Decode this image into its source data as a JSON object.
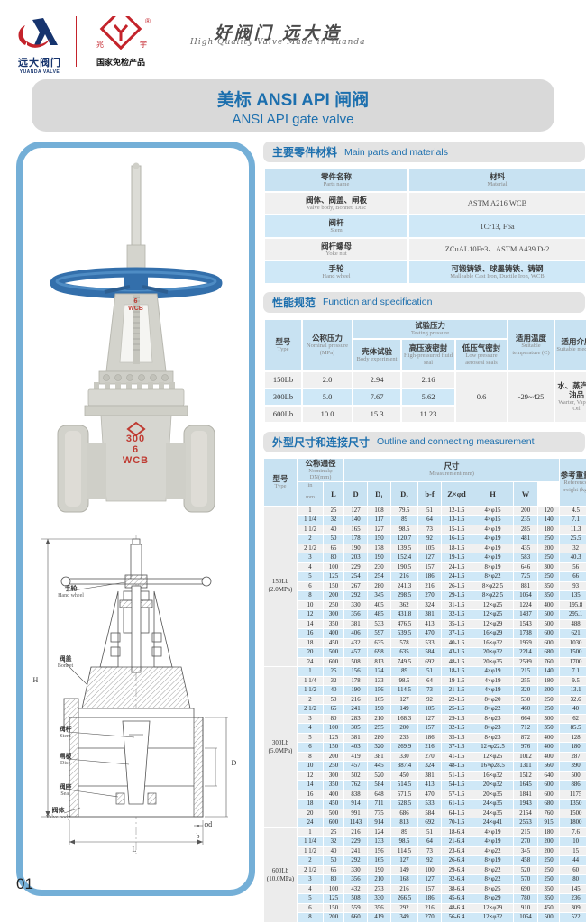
{
  "header": {
    "logo1": {
      "cn": "远大阀门",
      "en": "YUANDA VALVE"
    },
    "logo2": {
      "caption": "国家免检产品",
      "reg": "®"
    },
    "slogan": {
      "cn": "好阀门 远大造",
      "en": "High Quality Valve Made in Yuanda"
    }
  },
  "banner": {
    "title_cn": "美标 ANSI API 闸阀",
    "title_en": "ANSI API gate valve"
  },
  "photo": {
    "yoke_marks": [
      "6",
      "WCB"
    ],
    "body_marks": [
      "300",
      "6",
      "WCB"
    ]
  },
  "drawing": {
    "labels": [
      {
        "cn": "手轮",
        "en": "Hand wheel"
      },
      {
        "cn": "阀盖",
        "en": "Bonnet"
      },
      {
        "cn": "阀杆",
        "en": "Stem"
      },
      {
        "cn": "闸板",
        "en": "Disc"
      },
      {
        "cn": "阀座",
        "en": "Seat"
      },
      {
        "cn": "阀体",
        "en": "Valve body"
      }
    ],
    "dims": [
      "H",
      "L",
      "D",
      "φd",
      "b"
    ]
  },
  "parts": {
    "title_cn": "主要零件材料",
    "title_en": "Main parts and materials",
    "col1_cn": "零件名称",
    "col1_en": "Parts name",
    "col2_cn": "材料",
    "col2_en": "Material",
    "rows": [
      {
        "name_cn": "阀体、阀盖、闸板",
        "name_en": "Valve body, Bonnet, Disc",
        "mat_cn": "",
        "mat_en": "ASTM A216 WCB"
      },
      {
        "name_cn": "阀杆",
        "name_en": "Stem",
        "mat_cn": "",
        "mat_en": "1Cr13, F6a"
      },
      {
        "name_cn": "阀杆螺母",
        "name_en": "Yoke nut",
        "mat_cn": "",
        "mat_en": "ZCuAL10Fe3、ASTM A439 D-2"
      },
      {
        "name_cn": "手轮",
        "name_en": "Hand wheel",
        "mat_cn": "可锻铸铁、球墨铸铁、铸钢",
        "mat_en": "Malleable Cast Iron, Ductile Iron, WCB"
      }
    ]
  },
  "spec": {
    "title_cn": "性能规范",
    "title_en": "Function and specification",
    "h_type_cn": "型号",
    "h_type_en": "Type",
    "h_nominal_cn": "公称压力",
    "h_nominal_en": "Nominal pressure (MPa)",
    "h_test_cn": "试验压力",
    "h_test_en": "Testing pressure",
    "h_body_cn": "壳体试验",
    "h_body_en": "Body experiment",
    "h_high_cn": "高压液密封",
    "h_high_en": "High-pressured fluid seal",
    "h_low_cn": "低压气密封",
    "h_low_en": "Low pressure aeroseal seals",
    "h_temp_cn": "适用温度",
    "h_temp_en": "Suitable temperature (C)",
    "h_med_cn": "适用介质",
    "h_med_en": "Suitable medium",
    "rows": [
      [
        "150Lb",
        "2.0",
        "2.94",
        "2.16"
      ],
      [
        "300Lb",
        "5.0",
        "7.67",
        "5.62"
      ],
      [
        "600Lb",
        "10.0",
        "15.3",
        "11.23"
      ]
    ],
    "merged": {
      "low": "0.6",
      "temp": "-29~425",
      "medium_cn": "水、蒸汽、油品",
      "medium_en": "Warter, Vapour, Oil"
    }
  },
  "measurement": {
    "title_cn": "外型尺寸和连接尺寸",
    "title_en": "Outline and connecting measurement",
    "h_type_cn": "型号",
    "h_type_en": "Type",
    "h_dn_cn": "公称通径",
    "h_dn_en": "Nominalφ DN(mm)",
    "h_in": "in",
    "h_mm": "mm",
    "h_size_cn": "尺寸",
    "h_size_en": "Measurement(mm)",
    "cols": [
      "L",
      "D",
      "D₁",
      "D₂",
      "b-f",
      "Z×φd",
      "H",
      "W"
    ],
    "h_wt_cn": "参考重量",
    "h_wt_en": "Reference weight (kg)",
    "groups": [
      {
        "type": "150Lb",
        "mpa": "(2.0MPa)",
        "rows": [
          [
            "1",
            "25",
            "127",
            "108",
            "79.5",
            "51",
            "12-1.6",
            "4×φ15",
            "200",
            "120",
            "4.5"
          ],
          [
            "1 1/4",
            "32",
            "140",
            "117",
            "89",
            "64",
            "13-1.6",
            "4×φ15",
            "235",
            "140",
            "7.1"
          ],
          [
            "1 1/2",
            "40",
            "165",
            "127",
            "98.5",
            "73",
            "15-1.6",
            "4×φ19",
            "285",
            "180",
            "11.3"
          ],
          [
            "2",
            "50",
            "178",
            "150",
            "120.7",
            "92",
            "16-1.6",
            "4×φ19",
            "481",
            "250",
            "25.5"
          ],
          [
            "2 1/2",
            "65",
            "190",
            "178",
            "139.5",
            "105",
            "18-1.6",
            "4×φ19",
            "435",
            "200",
            "32"
          ],
          [
            "3",
            "80",
            "203",
            "190",
            "152.4",
            "127",
            "19-1.6",
            "4×φ19",
            "583",
            "250",
            "40.3"
          ],
          [
            "4",
            "100",
            "229",
            "230",
            "190.5",
            "157",
            "24-1.6",
            "8×φ19",
            "646",
            "300",
            "56"
          ],
          [
            "5",
            "125",
            "254",
            "254",
            "216",
            "186",
            "24-1.6",
            "8×φ22",
            "725",
            "250",
            "66"
          ],
          [
            "6",
            "150",
            "267",
            "280",
            "241.3",
            "216",
            "26-1.6",
            "8×φ22.5",
            "881",
            "350",
            "93"
          ],
          [
            "8",
            "200",
            "292",
            "345",
            "298.5",
            "270",
            "29-1.6",
            "8×φ22.5",
            "1064",
            "350",
            "135"
          ],
          [
            "10",
            "250",
            "330",
            "405",
            "362",
            "324",
            "31-1.6",
            "12×φ25",
            "1224",
            "400",
            "195.8"
          ],
          [
            "12",
            "300",
            "356",
            "485",
            "431.8",
            "381",
            "32-1.6",
            "12×φ25",
            "1437",
            "500",
            "295.1"
          ],
          [
            "14",
            "350",
            "381",
            "533",
            "476.5",
            "413",
            "35-1.6",
            "12×φ29",
            "1543",
            "500",
            "488"
          ],
          [
            "16",
            "400",
            "406",
            "597",
            "539.5",
            "470",
            "37-1.6",
            "16×φ29",
            "1738",
            "600",
            "621"
          ],
          [
            "18",
            "450",
            "432",
            "635",
            "578",
            "533",
            "40-1.6",
            "16×φ32",
            "1959",
            "600",
            "1030"
          ],
          [
            "20",
            "500",
            "457",
            "698",
            "635",
            "584",
            "43-1.6",
            "20×φ32",
            "2214",
            "680",
            "1500"
          ],
          [
            "24",
            "600",
            "508",
            "813",
            "749.5",
            "692",
            "48-1.6",
            "20×φ35",
            "2599",
            "760",
            "1700"
          ]
        ]
      },
      {
        "type": "300Lb",
        "mpa": "(5.0MPa)",
        "rows": [
          [
            "1",
            "25",
            "156",
            "124",
            "89",
            "51",
            "18-1.6",
            "4×φ19",
            "215",
            "140",
            "7.1"
          ],
          [
            "1 1/4",
            "32",
            "178",
            "133",
            "98.5",
            "64",
            "19-1.6",
            "4×φ19",
            "255",
            "180",
            "9.5"
          ],
          [
            "1 1/2",
            "40",
            "190",
            "156",
            "114.5",
            "73",
            "21-1.6",
            "4×φ19",
            "320",
            "200",
            "13.1"
          ],
          [
            "2",
            "50",
            "216",
            "165",
            "127",
            "92",
            "22-1.6",
            "8×φ20",
            "530",
            "250",
            "32.6"
          ],
          [
            "2 1/2",
            "65",
            "241",
            "190",
            "149",
            "105",
            "25-1.6",
            "8×φ22",
            "460",
            "250",
            "40"
          ],
          [
            "3",
            "80",
            "283",
            "210",
            "168.3",
            "127",
            "29-1.6",
            "8×φ23",
            "664",
            "300",
            "62"
          ],
          [
            "4",
            "100",
            "305",
            "255",
            "200",
            "157",
            "32-1.6",
            "8×φ23",
            "712",
            "350",
            "85.5"
          ],
          [
            "5",
            "125",
            "381",
            "280",
            "235",
            "186",
            "35-1.6",
            "8×φ23",
            "872",
            "400",
            "128"
          ],
          [
            "6",
            "150",
            "403",
            "320",
            "269.9",
            "216",
            "37-1.6",
            "12×φ22.5",
            "976",
            "400",
            "180"
          ],
          [
            "8",
            "200",
            "419",
            "381",
            "330",
            "270",
            "41-1.6",
            "12×φ25",
            "1012",
            "400",
            "287"
          ],
          [
            "10",
            "250",
            "457",
            "445",
            "387.4",
            "324",
            "48-1.6",
            "16×φ28.5",
            "1311",
            "560",
            "390"
          ],
          [
            "12",
            "300",
            "502",
            "520",
            "450",
            "381",
            "51-1.6",
            "16×φ32",
            "1512",
            "640",
            "500"
          ],
          [
            "14",
            "350",
            "762",
            "584",
            "514.5",
            "413",
            "54-1.6",
            "20×φ32",
            "1645",
            "600",
            "886"
          ],
          [
            "16",
            "400",
            "838",
            "648",
            "571.5",
            "470",
            "57-1.6",
            "20×φ35",
            "1841",
            "600",
            "1175"
          ],
          [
            "18",
            "450",
            "914",
            "711",
            "628.5",
            "533",
            "61-1.6",
            "24×φ35",
            "1943",
            "680",
            "1350"
          ],
          [
            "20",
            "500",
            "991",
            "775",
            "686",
            "584",
            "64-1.6",
            "24×φ35",
            "2154",
            "760",
            "1500"
          ],
          [
            "24",
            "600",
            "1143",
            "914",
            "813",
            "692",
            "70-1.6",
            "24×φ41",
            "2553",
            "915",
            "1800"
          ]
        ]
      },
      {
        "type": "600Lb",
        "mpa": "(10.0MPa)",
        "rows": [
          [
            "1",
            "25",
            "216",
            "124",
            "89",
            "51",
            "18-6.4",
            "4×φ19",
            "215",
            "180",
            "7.6"
          ],
          [
            "1 1/4",
            "32",
            "229",
            "133",
            "98.5",
            "64",
            "21-6.4",
            "4×φ19",
            "270",
            "200",
            "10"
          ],
          [
            "1 1/2",
            "40",
            "241",
            "156",
            "114.5",
            "73",
            "23-6.4",
            "4×φ22",
            "345",
            "200",
            "15"
          ],
          [
            "2",
            "50",
            "292",
            "165",
            "127",
            "92",
            "26-6.4",
            "8×φ19",
            "458",
            "250",
            "44"
          ],
          [
            "2 1/2",
            "65",
            "330",
            "190",
            "149",
            "100",
            "29-6.4",
            "8×φ22",
            "520",
            "250",
            "60"
          ],
          [
            "3",
            "80",
            "356",
            "210",
            "168",
            "127",
            "32-6.4",
            "8×φ22",
            "570",
            "250",
            "80"
          ],
          [
            "4",
            "100",
            "432",
            "273",
            "216",
            "157",
            "38-6.4",
            "8×φ25",
            "690",
            "350",
            "145"
          ],
          [
            "5",
            "125",
            "508",
            "330",
            "266.5",
            "186",
            "45-6.4",
            "8×φ29",
            "780",
            "350",
            "236"
          ],
          [
            "6",
            "150",
            "559",
            "356",
            "292",
            "216",
            "48-6.4",
            "12×φ29",
            "910",
            "450",
            "309"
          ],
          [
            "8",
            "200",
            "660",
            "419",
            "349",
            "270",
            "56-6.4",
            "12×φ32",
            "1064",
            "500",
            "522"
          ]
        ]
      }
    ]
  },
  "page_number": "01"
}
